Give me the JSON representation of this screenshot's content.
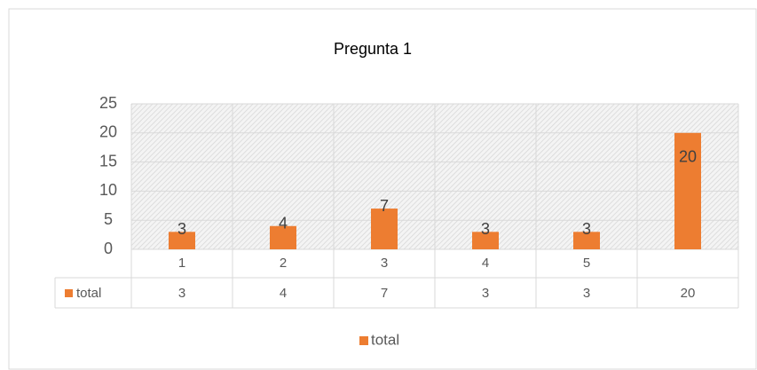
{
  "chart_data": {
    "type": "bar",
    "title": "Pregunta 1",
    "categories": [
      1,
      2,
      3,
      4,
      5,
      null
    ],
    "series": [
      {
        "name": "total",
        "color": "#ed7d31",
        "values": [
          3,
          4,
          7,
          3,
          3,
          20
        ]
      }
    ],
    "ylim": [
      0,
      25
    ],
    "yticks": [
      0,
      5,
      10,
      15,
      20,
      25
    ],
    "grid": true,
    "legend": "bottom",
    "data_table": true
  }
}
